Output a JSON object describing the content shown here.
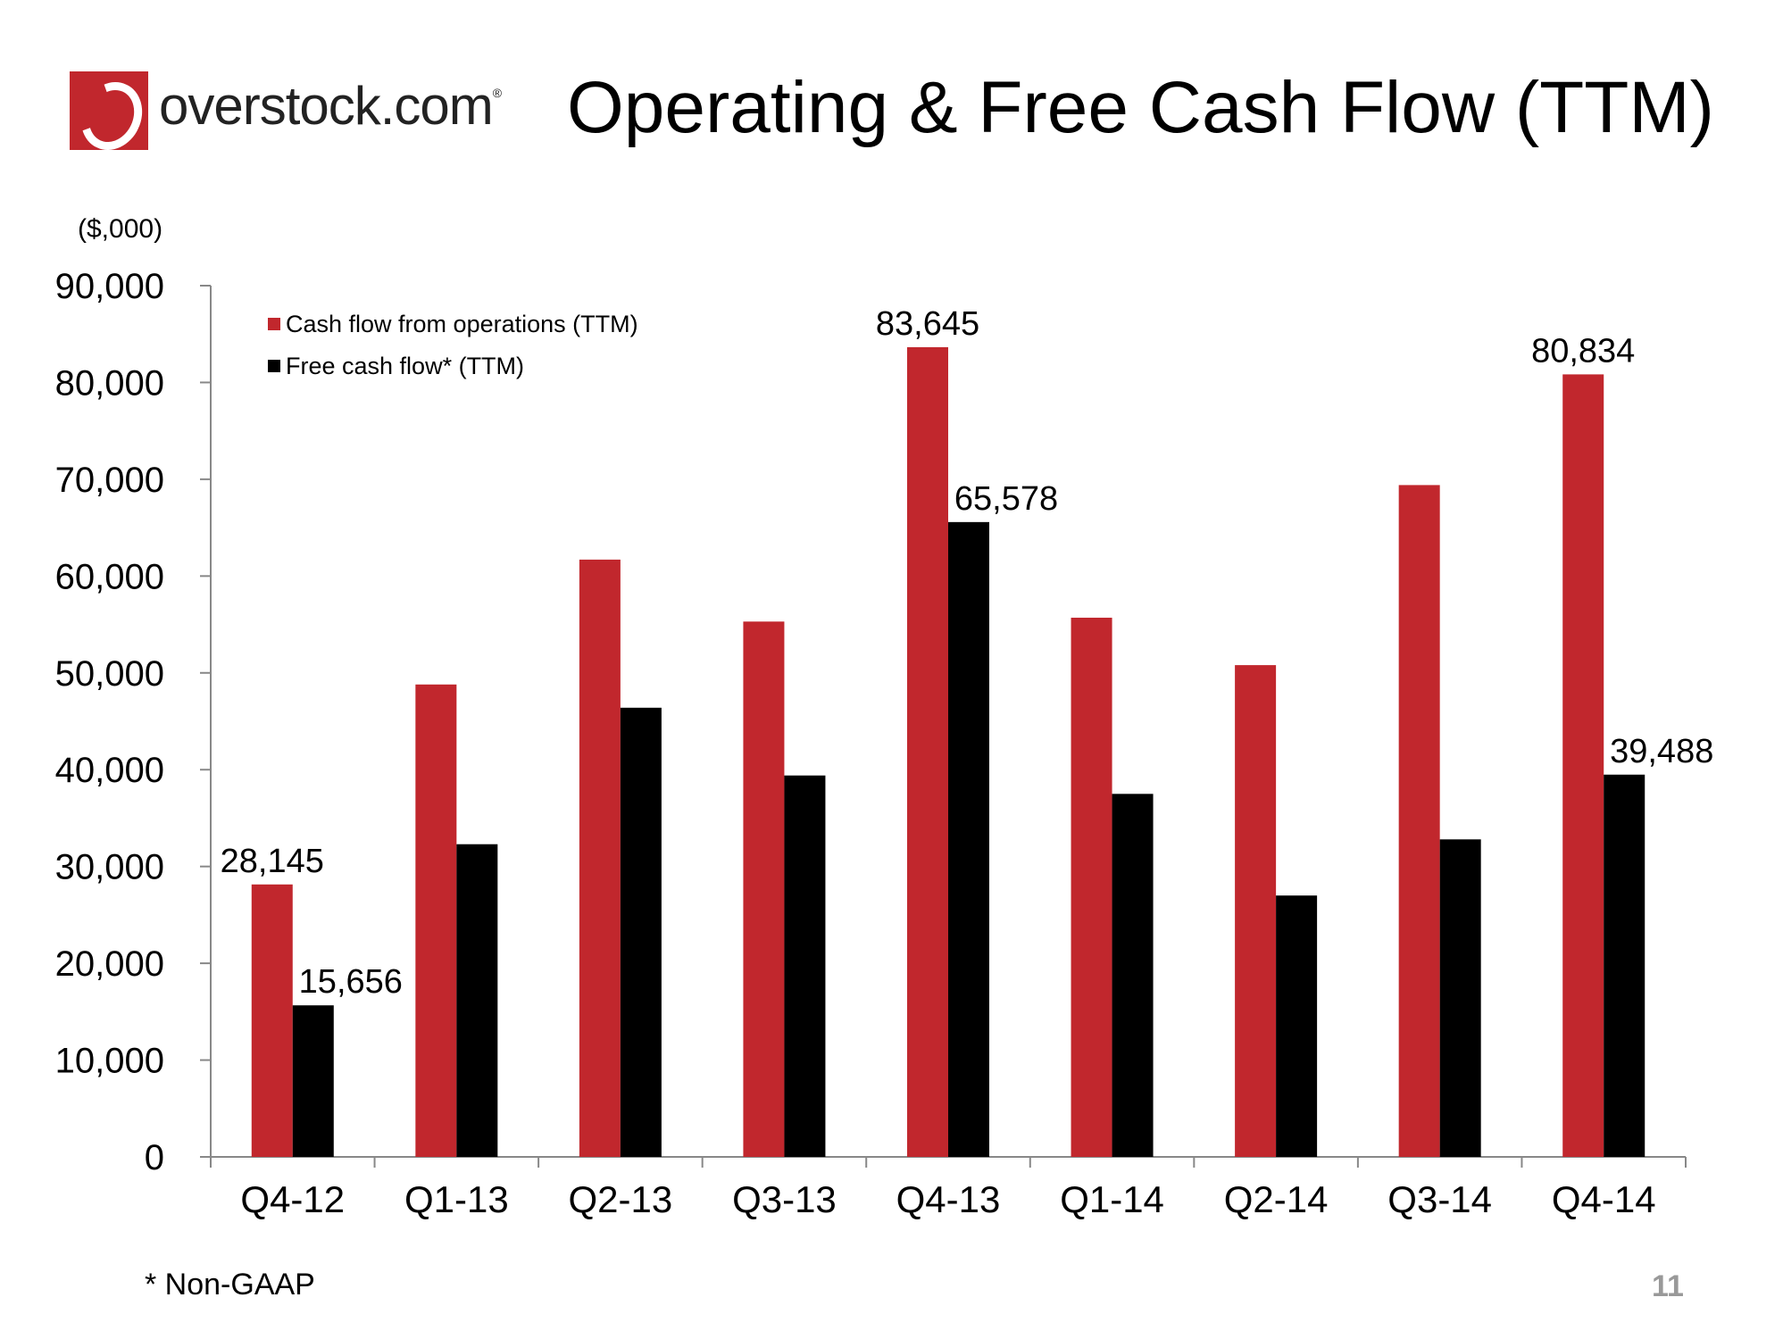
{
  "logo": {
    "text": "overstock.com",
    "mark": "registered-mark",
    "brand_color": "#c1272d"
  },
  "page_title": "Operating & Free Cash Flow (TTM)",
  "footnote": "* Non-GAAP",
  "page_number": "11",
  "chart_data": {
    "type": "bar",
    "unit_label": "($,000)",
    "categories": [
      "Q4-12",
      "Q1-13",
      "Q2-13",
      "Q3-13",
      "Q4-13",
      "Q1-14",
      "Q2-14",
      "Q3-14",
      "Q4-14"
    ],
    "series": [
      {
        "name": "Cash flow from operations (TTM)",
        "color": "#c1272d",
        "values": [
          28145,
          48800,
          61700,
          55300,
          83645,
          55700,
          50800,
          69400,
          80834
        ],
        "data_labels": [
          "28,145",
          null,
          null,
          null,
          "83,645",
          null,
          null,
          null,
          "80,834"
        ]
      },
      {
        "name": "Free cash flow* (TTM)",
        "color": "#000000",
        "values": [
          15656,
          32300,
          46400,
          39400,
          65578,
          37500,
          27000,
          32800,
          39488
        ],
        "data_labels": [
          "15,656",
          null,
          null,
          null,
          "65,578",
          null,
          null,
          null,
          "39,488"
        ]
      }
    ],
    "ylim": [
      0,
      90000
    ],
    "yticks": [
      0,
      10000,
      20000,
      30000,
      40000,
      50000,
      60000,
      70000,
      80000,
      90000
    ],
    "ytick_labels": [
      "0",
      "10,000",
      "20,000",
      "30,000",
      "40,000",
      "50,000",
      "60,000",
      "70,000",
      "80,000",
      "90,000"
    ],
    "grid": false,
    "legend_position": "top-left"
  }
}
